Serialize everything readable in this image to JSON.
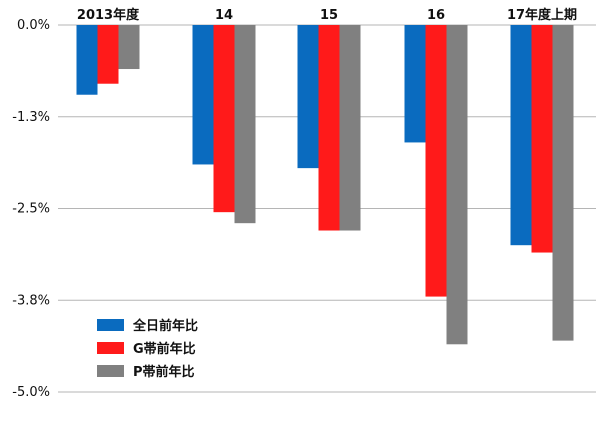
{
  "chart_data": {
    "type": "bar",
    "categories": [
      "2013年度",
      "14",
      "15",
      "16",
      "17年度上期"
    ],
    "series": [
      {
        "name": "全日前年比",
        "color": "#0a6bbf",
        "values": [
          -0.95,
          -1.9,
          -1.95,
          -1.6,
          -3.0
        ]
      },
      {
        "name": "G帯前年比",
        "color": "#ff1a1a",
        "values": [
          -0.8,
          -2.55,
          -2.8,
          -3.7,
          -3.1
        ]
      },
      {
        "name": "P帯前年比",
        "color": "#808080",
        "values": [
          -0.6,
          -2.7,
          -2.8,
          -4.35,
          -4.3
        ]
      }
    ],
    "yticks": [
      "0.0%",
      "-1.3%",
      "-2.5%",
      "-3.8%",
      "-5.0%"
    ],
    "ylim": [
      -5.0,
      0.0
    ],
    "grid": true,
    "legend_position": "bottom-left",
    "title": "",
    "xlabel": "",
    "ylabel": ""
  }
}
